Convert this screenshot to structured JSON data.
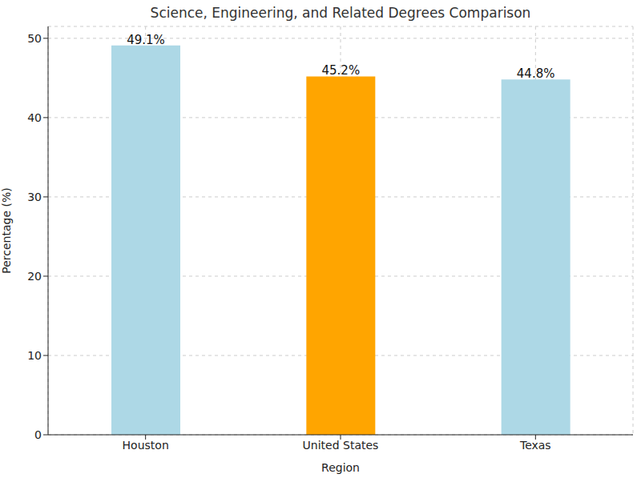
{
  "chart_data": {
    "type": "bar",
    "title": "Science, Engineering, and Related Degrees Comparison",
    "x_label": "Region",
    "y_label": "Percentage (%)",
    "categories": [
      "Houston",
      "United States",
      "Texas"
    ],
    "values": [
      49.1,
      45.2,
      44.8
    ],
    "value_labels": [
      "49.1%",
      "45.2%",
      "44.8%"
    ],
    "colors": [
      "#add8e6",
      "#ffa500",
      "#add8e6"
    ],
    "ylim": [
      0,
      51.5
    ],
    "yticks": [
      0,
      10,
      20,
      30,
      40,
      50
    ],
    "grid": true,
    "data_labels": true
  }
}
